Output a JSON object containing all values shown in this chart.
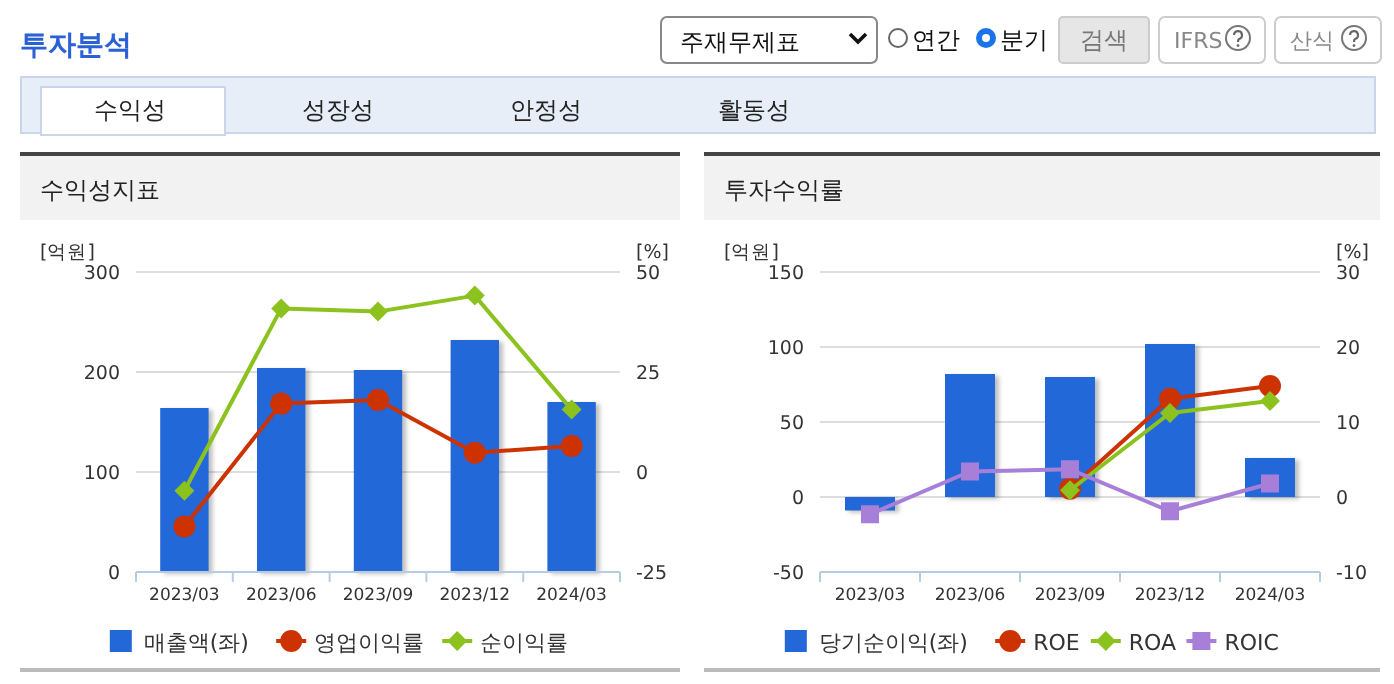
{
  "chart_data": [
    {
      "type": "other",
      "title": "투자분석",
      "annotations": [
        "주재무제표",
        "연간",
        "분기",
        "검색",
        "IFRS",
        "산식",
        "수익성",
        "성장성",
        "안정성",
        "활동성"
      ]
    },
    {
      "type": "bar",
      "title": "수익성지표",
      "ylabel": "[억원]",
      "y2label": "[%]",
      "categories": [
        "2023/03",
        "2023/06",
        "2023/09",
        "2023/12",
        "2024/03"
      ],
      "ylim": [
        0,
        300
      ],
      "yticks": [
        0,
        100,
        200,
        300
      ],
      "y2lim": [
        -25,
        50
      ],
      "y2ticks": [
        -25,
        0,
        25,
        50
      ],
      "grid": "y",
      "legend": "bottom",
      "series": [
        {
          "name": "매출액(좌)",
          "type": "bar",
          "color": "#2268d9",
          "values": [
            164,
            204,
            202,
            232,
            170
          ]
        },
        {
          "name": "영업이익률",
          "type": "line",
          "axis": "y2",
          "marker": "circle",
          "color": "#cc3300",
          "values": [
            -13.6,
            17.1,
            18.0,
            4.8,
            6.5
          ]
        },
        {
          "name": "순이익률",
          "type": "line",
          "axis": "y2",
          "marker": "diamond",
          "color": "#8cc21e",
          "values": [
            -4.7,
            40.9,
            40.1,
            44.1,
            15.6
          ]
        }
      ]
    },
    {
      "type": "bar",
      "title": "투자수익률",
      "ylabel": "[억원]",
      "y2label": "[%]",
      "categories": [
        "2023/03",
        "2023/06",
        "2023/09",
        "2023/12",
        "2024/03"
      ],
      "ylim": [
        -50,
        150
      ],
      "yticks": [
        -50,
        0,
        50,
        100,
        150
      ],
      "y2lim": [
        -10,
        30
      ],
      "y2ticks": [
        -10,
        0,
        10,
        20,
        30
      ],
      "grid": "y",
      "legend": "bottom",
      "series": [
        {
          "name": "당기순이익(좌)",
          "type": "bar",
          "color": "#2268d9",
          "values": [
            -9,
            82,
            80,
            102,
            26
          ]
        },
        {
          "name": "ROE",
          "type": "line",
          "axis": "y2",
          "marker": "circle",
          "color": "#cc3300",
          "values": [
            null,
            null,
            1.1,
            13.1,
            14.8
          ]
        },
        {
          "name": "ROA",
          "type": "line",
          "axis": "y2",
          "marker": "diamond",
          "color": "#8cc21e",
          "values": [
            null,
            null,
            0.9,
            11.2,
            12.8
          ]
        },
        {
          "name": "ROIC",
          "type": "line",
          "axis": "y2",
          "marker": "square",
          "color": "#a87fd8",
          "values": [
            -2.3,
            3.4,
            3.7,
            -1.9,
            1.8
          ]
        }
      ]
    }
  ]
}
